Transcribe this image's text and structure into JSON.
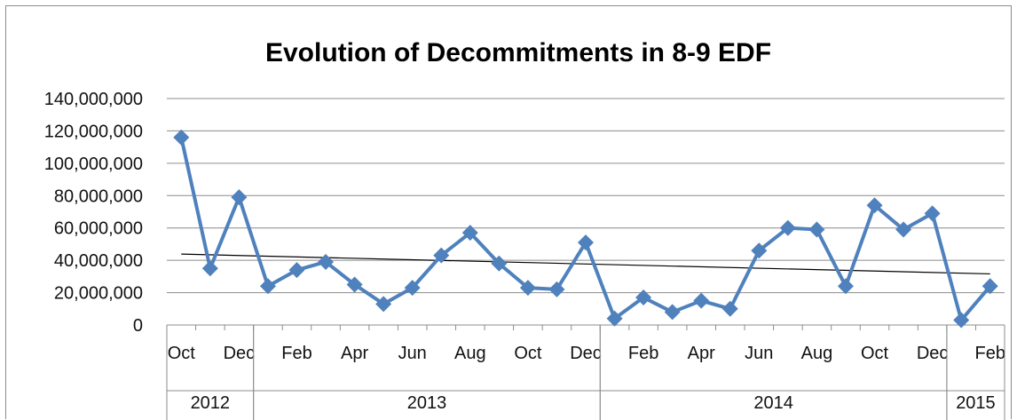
{
  "chart_data": {
    "type": "line",
    "title": "Evolution of Decommitments in 8-9 EDF",
    "xlabel": "",
    "ylabel": "",
    "ylim": [
      0,
      140000000
    ],
    "y_ticks": [
      0,
      20000000,
      40000000,
      60000000,
      80000000,
      100000000,
      120000000,
      140000000
    ],
    "y_tick_labels": [
      "0",
      "20,000,000",
      "40,000,000",
      "60,000,000",
      "80,000,000",
      "100,000,000",
      "120,000,000",
      "140,000,000"
    ],
    "grid": true,
    "legend": "none",
    "x": [
      "2012-10",
      "2012-11",
      "2012-12",
      "2013-01",
      "2013-02",
      "2013-03",
      "2013-04",
      "2013-05",
      "2013-06",
      "2013-07",
      "2013-08",
      "2013-09",
      "2013-10",
      "2013-11",
      "2013-12",
      "2014-01",
      "2014-02",
      "2014-03",
      "2014-04",
      "2014-05",
      "2014-06",
      "2014-07",
      "2014-08",
      "2014-09",
      "2014-10",
      "2014-11",
      "2014-12",
      "2015-01",
      "2015-02"
    ],
    "month_labels": [
      "Oct",
      "",
      "Dec",
      "",
      "Feb",
      "",
      "Apr",
      "",
      "Jun",
      "",
      "Aug",
      "",
      "Oct",
      "",
      "Dec",
      "",
      "Feb",
      "",
      "Apr",
      "",
      "Jun",
      "",
      "Aug",
      "",
      "Oct",
      "",
      "Dec",
      "",
      "Feb"
    ],
    "years": [
      {
        "label": "2012",
        "start": 0,
        "end": 2
      },
      {
        "label": "2013",
        "start": 3,
        "end": 14
      },
      {
        "label": "2014",
        "start": 15,
        "end": 26
      },
      {
        "label": "2015",
        "start": 27,
        "end": 28
      }
    ],
    "series": [
      {
        "values": [
          116000000,
          35000000,
          79000000,
          24000000,
          34000000,
          39000000,
          25000000,
          13000000,
          23000000,
          43000000,
          57000000,
          38000000,
          23000000,
          22000000,
          51000000,
          4000000,
          17000000,
          8000000,
          15000000,
          10000000,
          46000000,
          60000000,
          59000000,
          24000000,
          74000000,
          59000000,
          69000000,
          3000000,
          24000000
        ],
        "color": "#4f81bd",
        "marker": "diamond"
      }
    ],
    "trendline": {
      "type": "linear",
      "color": "#000000"
    }
  }
}
